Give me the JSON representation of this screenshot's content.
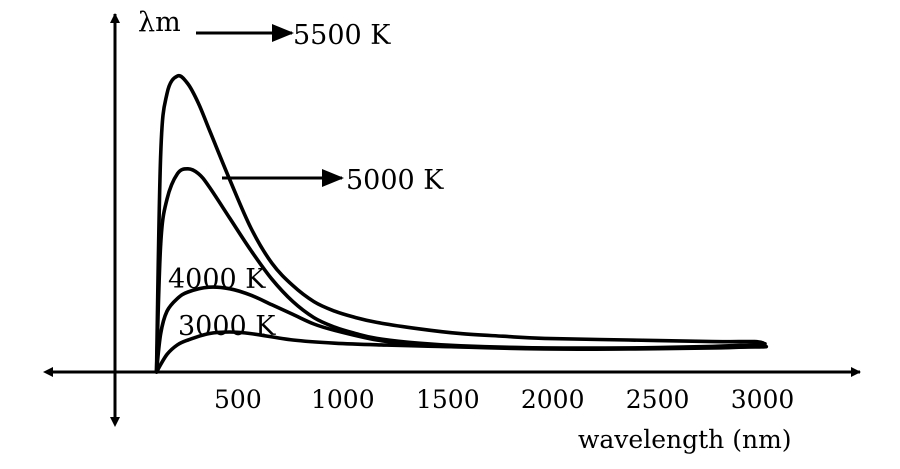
{
  "chart_data": {
    "type": "line",
    "title": "",
    "xlabel": "wavelength (nm)",
    "ylabel": "λm",
    "x_ticks": [
      500,
      1000,
      1500,
      2000,
      2500,
      3000
    ],
    "xlim": [
      -400,
      3400
    ],
    "ylim": [
      0,
      1
    ],
    "legend": "none",
    "grid": false,
    "series": [
      {
        "name": "5500 K",
        "x": [
          150,
          170,
          200,
          250,
          300,
          350,
          400,
          500,
          600,
          700,
          800,
          900,
          1000,
          1100,
          1200,
          1400,
          1600,
          1800,
          2000,
          2400,
          2800,
          3000,
          3050
        ],
        "y": [
          0.0,
          0.68,
          0.87,
          0.925,
          0.9,
          0.84,
          0.76,
          0.6,
          0.45,
          0.34,
          0.27,
          0.22,
          0.19,
          0.17,
          0.155,
          0.135,
          0.12,
          0.112,
          0.105,
          0.1,
          0.095,
          0.095,
          0.088
        ]
      },
      {
        "name": "5000 K",
        "x": [
          150,
          170,
          200,
          250,
          300,
          350,
          400,
          500,
          600,
          700,
          800,
          900,
          1000,
          1100,
          1200,
          1400,
          1600,
          2000,
          2400,
          2800,
          3000,
          3050
        ],
        "y": [
          0.0,
          0.4,
          0.54,
          0.62,
          0.635,
          0.62,
          0.58,
          0.48,
          0.38,
          0.29,
          0.22,
          0.17,
          0.14,
          0.12,
          0.105,
          0.09,
          0.082,
          0.075,
          0.075,
          0.08,
          0.085,
          0.082
        ]
      },
      {
        "name": "4000 K",
        "x": [
          150,
          170,
          200,
          250,
          300,
          400,
          500,
          600,
          700,
          800,
          900,
          1000,
          1200,
          1400,
          1600,
          2000,
          2400,
          2800,
          3000,
          3050
        ],
        "y": [
          0.0,
          0.12,
          0.19,
          0.23,
          0.25,
          0.265,
          0.26,
          0.24,
          0.21,
          0.18,
          0.15,
          0.13,
          0.1,
          0.085,
          0.078,
          0.072,
          0.072,
          0.075,
          0.08,
          0.082
        ]
      },
      {
        "name": "3000 K",
        "x": [
          150,
          200,
          250,
          300,
          400,
          500,
          600,
          800,
          1000,
          1200,
          1500,
          2000,
          2500,
          3000,
          3050
        ],
        "y": [
          0.0,
          0.055,
          0.085,
          0.1,
          0.12,
          0.125,
          0.12,
          0.1,
          0.09,
          0.085,
          0.08,
          0.075,
          0.075,
          0.078,
          0.08
        ]
      }
    ],
    "annotations": [
      {
        "text": "λm → 5500 K",
        "target_series": "5500 K"
      },
      {
        "text": "→ 5000 K",
        "target_series": "5000 K"
      },
      {
        "text": "4000 K",
        "target_series": "4000 K"
      },
      {
        "text": "3000 K",
        "target_series": "3000 K"
      }
    ]
  }
}
